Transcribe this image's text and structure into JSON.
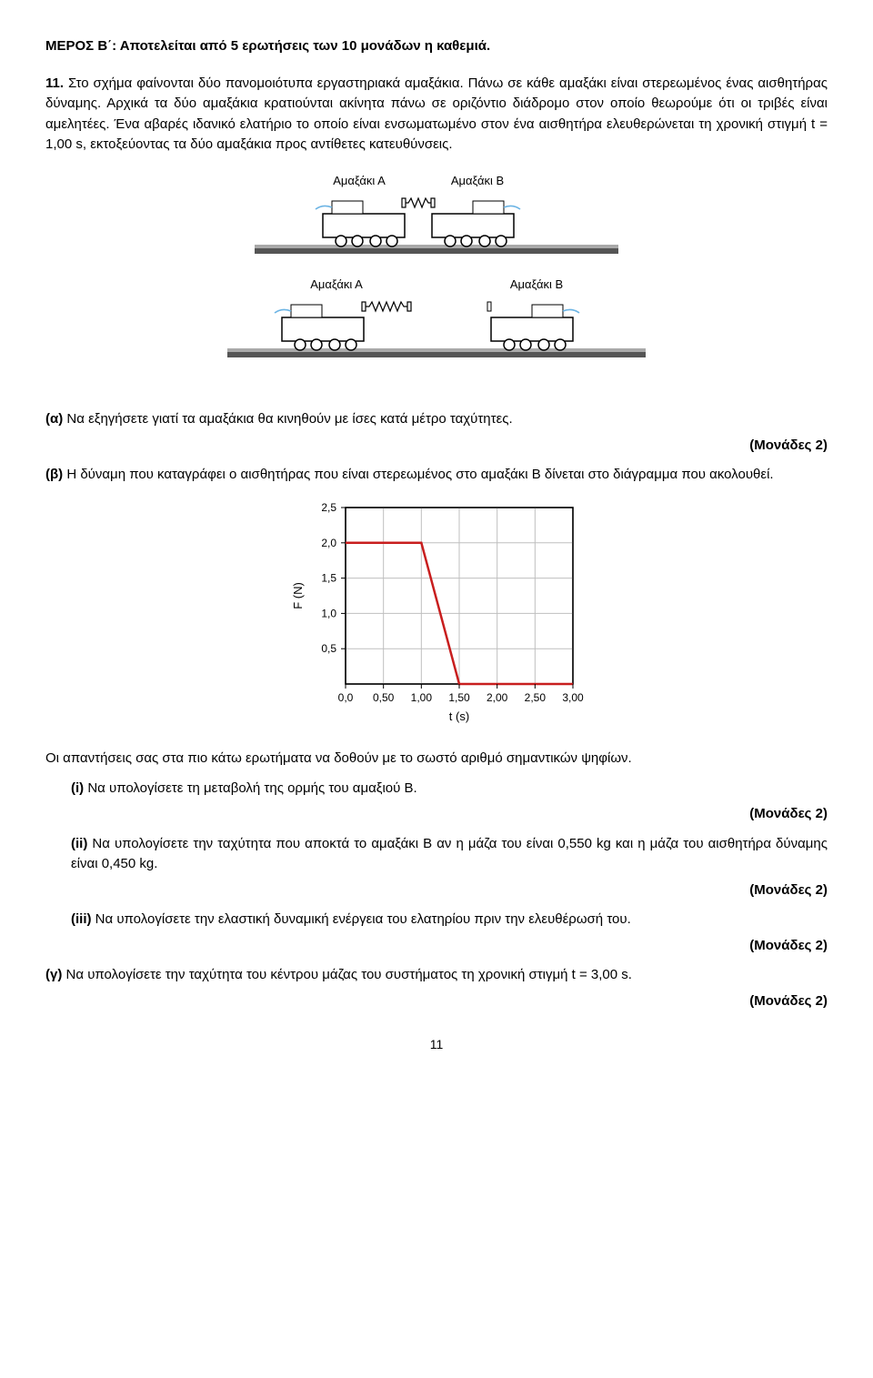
{
  "section_title": "ΜΕΡΟΣ Β΄:  Αποτελείται από 5 ερωτήσεις των 10 μονάδων η καθεμιά.",
  "q11": {
    "number": "11.",
    "text": "Στο σχήμα φαίνονται δύο πανομοιότυπα εργαστηριακά αμαξάκια. Πάνω σε κάθε αμαξάκι είναι στερεωμένος ένας αισθητήρας δύναμης. Αρχικά τα δύο αμαξάκια κρατιούνται ακίνητα πάνω σε οριζόντιο διάδρομο στον οποίο θεωρούμε ότι οι τριβές  είναι αμελητέες.  Ένα  αβαρές  ιδανικό  ελατήριο  το  οποίο  είναι ενσωματωμένο στον ένα αισθητήρα ελευθερώνεται τη χρονική στιγμή t = 1,00 s, εκτοξεύοντας τα δύο αμαξάκια προς αντίθετες κατευθύνσεις."
  },
  "diagram": {
    "labels": {
      "top_left": "Αμαξάκι Α",
      "top_right": "Αμαξάκι Β",
      "bottom_left": "Αμαξάκι Α",
      "bottom_right": "Αμαξάκι Β"
    },
    "colors": {
      "cart_fill": "#ffffff",
      "cart_stroke": "#000000",
      "sensor_fill": "#ffffff",
      "wire": "#6cb4e4",
      "track_top": "#a9a9a9",
      "track_dark": "#555555",
      "spring": "#000000"
    }
  },
  "sub_a": {
    "label": "(α)",
    "text": "Να εξηγήσετε γιατί τα αμαξάκια θα κινηθούν με ίσες κατά μέτρο ταχύτητες.",
    "points": "(Μονάδες 2)"
  },
  "sub_b": {
    "label": "(β)",
    "text": "Η δύναμη που καταγράφει ο αισθητήρας που είναι στερεωμένος στο αμαξάκι Β δίνεται στο διάγραμμα που ακολουθεί.",
    "chart": {
      "type": "line",
      "xlabel": "t (s)",
      "ylabel": "F (N)",
      "xlim": [
        0,
        3.0
      ],
      "ylim": [
        0,
        2.5
      ],
      "xtick_labels": [
        "0,0",
        "0,50",
        "1,00",
        "1,50",
        "2,00",
        "2,50",
        "3,00"
      ],
      "xtick_vals": [
        0,
        0.5,
        1.0,
        1.5,
        2.0,
        2.5,
        3.0
      ],
      "ytick_labels": [
        "0,5",
        "1,0",
        "1,5",
        "2,0",
        "2,5"
      ],
      "ytick_vals": [
        0.5,
        1.0,
        1.5,
        2.0,
        2.5
      ],
      "series": {
        "color": "#c81e1e",
        "linewidth": 2.5,
        "points": [
          [
            0,
            2.0
          ],
          [
            1.0,
            2.0
          ],
          [
            1.5,
            0
          ],
          [
            3.0,
            0
          ]
        ]
      },
      "grid_color": "#bfbfbf",
      "bg": "#ffffff",
      "axis_color": "#000000",
      "label_fontsize": 13,
      "tick_fontsize": 12
    },
    "after_chart": "Οι απαντήσεις σας στα πιο κάτω ερωτήματα να δοθούν με το σωστό αριθμό σημαντικών ψηφίων.",
    "i": {
      "label": "(i)",
      "text": "Να υπολογίσετε τη μεταβολή της ορμής του αμαξιού Β.",
      "points": "(Μονάδες 2)"
    },
    "ii": {
      "label": "(ii)",
      "text": "Να υπολογίσετε την ταχύτητα που αποκτά το αμαξάκι Β αν η μάζα του είναι 0,550 kg και η μάζα του αισθητήρα δύναμης είναι 0,450 kg.",
      "points": "(Μονάδες 2)"
    },
    "iii": {
      "label": "(iii)",
      "text": "Να υπολογίσετε την ελαστική δυναμική ενέργεια του ελατηρίου πριν την ελευθέρωσή του.",
      "points": "(Μονάδες 2)"
    }
  },
  "sub_c": {
    "label": "(γ)",
    "text": "Να υπολογίσετε την ταχύτητα του κέντρου μάζας του συστήματος τη χρονική στιγμή  t = 3,00 s.",
    "points": "(Μονάδες 2)"
  },
  "page_number": "11"
}
